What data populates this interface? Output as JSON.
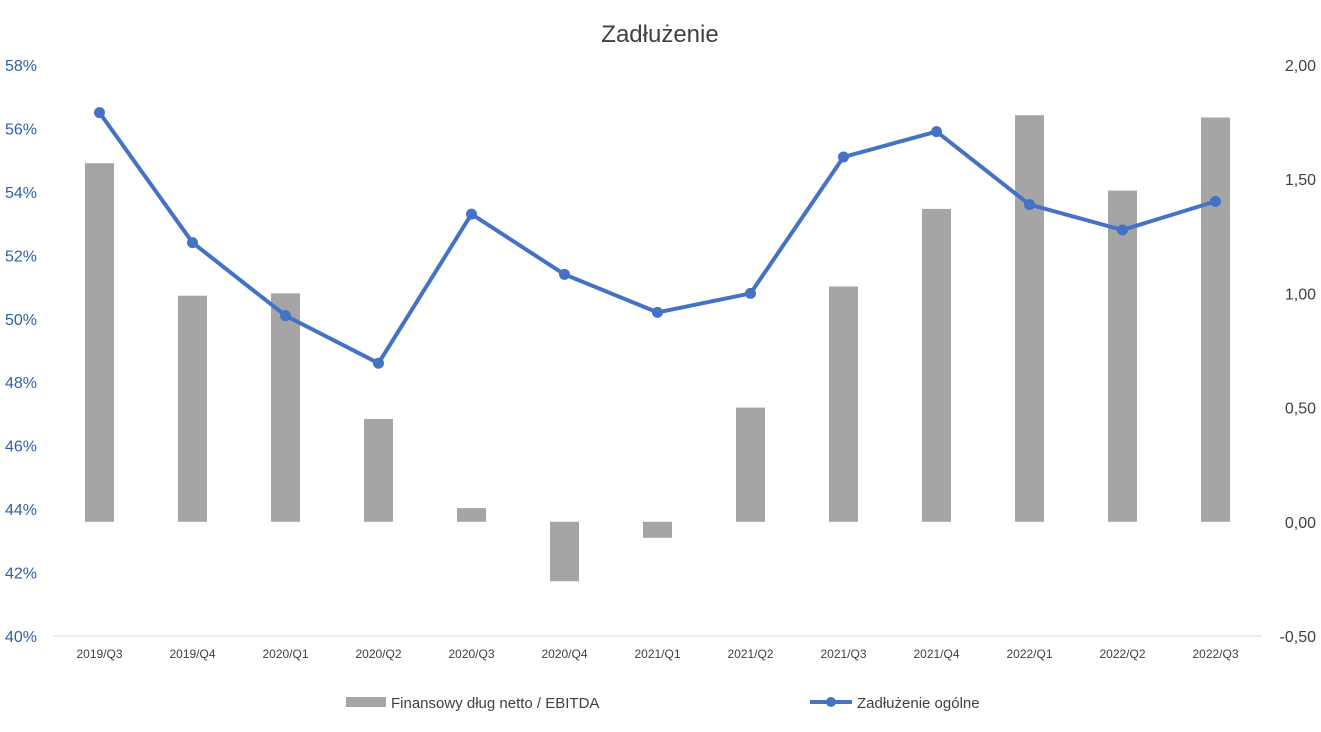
{
  "chart_data": {
    "type": "bar+line",
    "title": "Zadłużenie",
    "categories": [
      "2019/Q3",
      "2019/Q4",
      "2020/Q1",
      "2020/Q2",
      "2020/Q3",
      "2020/Q4",
      "2021/Q1",
      "2021/Q2",
      "2021/Q3",
      "2021/Q4",
      "2022/Q1",
      "2022/Q2",
      "2022/Q3"
    ],
    "series": [
      {
        "name": "Finansowy dług netto / EBITDA",
        "type": "bar",
        "axis": "right",
        "color": "#a5a5a5",
        "values": [
          1.57,
          0.99,
          1.0,
          0.45,
          0.06,
          -0.26,
          -0.07,
          0.5,
          1.03,
          1.37,
          1.78,
          1.45,
          1.77
        ]
      },
      {
        "name": "Zadłużenie ogólne",
        "type": "line",
        "axis": "left",
        "color": "#4472c4",
        "values": [
          56.5,
          52.4,
          50.1,
          48.6,
          53.3,
          51.4,
          50.2,
          50.8,
          55.1,
          55.9,
          53.6,
          52.8,
          53.7
        ]
      }
    ],
    "y_left": {
      "min": 40,
      "max": 58,
      "step": 2,
      "tick_labels": [
        "40%",
        "42%",
        "44%",
        "46%",
        "48%",
        "50%",
        "52%",
        "54%",
        "56%",
        "58%"
      ],
      "color": "#2e5fa7"
    },
    "y_right": {
      "min": -0.5,
      "max": 2.0,
      "step": 0.5,
      "tick_labels": [
        "-0,50",
        "0,00",
        "0,50",
        "1,00",
        "1,50",
        "2,00"
      ]
    },
    "grid": false,
    "legend": {
      "position": "bottom",
      "items": [
        "Finansowy dług netto / EBITDA",
        "Zadłużenie ogólne"
      ]
    }
  }
}
